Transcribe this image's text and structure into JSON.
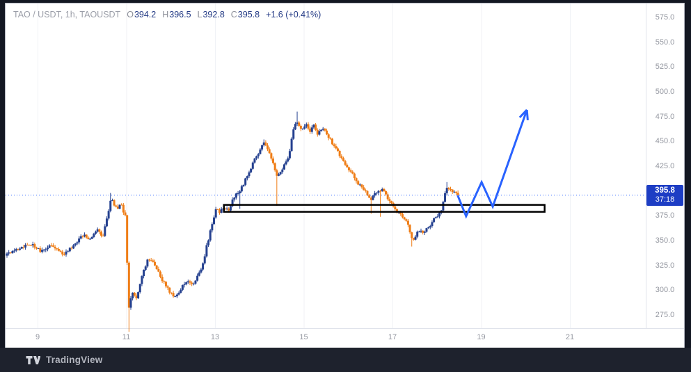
{
  "header": {
    "symbol_text": "TAO / USDT, 1h, TAOUSDT",
    "ohlc": [
      {
        "label": "O",
        "value": "394.2"
      },
      {
        "label": "H",
        "value": "396.5"
      },
      {
        "label": "L",
        "value": "392.8"
      },
      {
        "label": "C",
        "value": "395.8"
      }
    ],
    "change": "+1.6 (+0.41%)"
  },
  "price_axis": {
    "labels": [
      "575.0",
      "550.0",
      "525.0",
      "500.0",
      "475.0",
      "450.0",
      "425.0",
      "400.0",
      "375.0",
      "350.0",
      "325.0",
      "300.0",
      "275.0"
    ],
    "min": 275,
    "max": 575,
    "step": 25
  },
  "time_axis": {
    "labels": [
      "9",
      "11",
      "13",
      "15",
      "17",
      "19",
      "21"
    ],
    "days": [
      9,
      11,
      13,
      15,
      17,
      19,
      21
    ]
  },
  "price_badge": {
    "price": "395.8",
    "countdown": "37:18"
  },
  "footer": {
    "brand": "TradingView"
  },
  "colors": {
    "up": "#24408f",
    "down": "#ef7d16",
    "drawing": "#2962ff",
    "badge_bg": "#1d3dc4",
    "axis_text": "#9598a1",
    "grid": "#f0f2f6",
    "separator": "#e0e3eb",
    "frame_bg": "#131722",
    "footer_bg": "#1e222d",
    "rect_stroke": "#000000"
  },
  "chart_data": {
    "type": "candlestick",
    "symbol": "TAOUSDT",
    "interval": "1h",
    "title": "TAO / USDT, 1h, TAOUSDT",
    "x_unit": "day of month",
    "visible_day_range": [
      8.28,
      22.7
    ],
    "ylim": [
      262,
      585
    ],
    "grid": "vertical-faint",
    "last_price": 395.8,
    "bars_start_day": 8.31,
    "bars_end_day": 18.47,
    "bar_interval_days": 0.0416667,
    "price_keypoints": [
      [
        8.31,
        336
      ],
      [
        8.86,
        347
      ],
      [
        9.09,
        339
      ],
      [
        9.33,
        346
      ],
      [
        9.56,
        336
      ],
      [
        9.8,
        344
      ],
      [
        10.04,
        357
      ],
      [
        10.16,
        352
      ],
      [
        10.35,
        360
      ],
      [
        10.47,
        353
      ],
      [
        10.66,
        393
      ],
      [
        10.79,
        381
      ],
      [
        10.88,
        387
      ],
      [
        11.0,
        371
      ],
      [
        11.04,
        276
      ],
      [
        11.13,
        300
      ],
      [
        11.23,
        291
      ],
      [
        11.37,
        316
      ],
      [
        11.49,
        333
      ],
      [
        11.64,
        325
      ],
      [
        11.79,
        312
      ],
      [
        11.95,
        301
      ],
      [
        12.07,
        292
      ],
      [
        12.18,
        297
      ],
      [
        12.28,
        305
      ],
      [
        12.39,
        309
      ],
      [
        12.5,
        304
      ],
      [
        12.61,
        314
      ],
      [
        12.72,
        326
      ],
      [
        12.81,
        344
      ],
      [
        12.91,
        362
      ],
      [
        13.02,
        381
      ],
      [
        13.11,
        378
      ],
      [
        13.2,
        385
      ],
      [
        13.3,
        379
      ],
      [
        13.39,
        390
      ],
      [
        13.49,
        397
      ],
      [
        13.58,
        402
      ],
      [
        13.67,
        410
      ],
      [
        13.77,
        420
      ],
      [
        13.88,
        430
      ],
      [
        13.99,
        440
      ],
      [
        14.1,
        449
      ],
      [
        14.21,
        441
      ],
      [
        14.3,
        430
      ],
      [
        14.4,
        414
      ],
      [
        14.49,
        421
      ],
      [
        14.58,
        428
      ],
      [
        14.68,
        438
      ],
      [
        14.76,
        462
      ],
      [
        14.85,
        470
      ],
      [
        14.95,
        461
      ],
      [
        15.04,
        468
      ],
      [
        15.13,
        459
      ],
      [
        15.23,
        466
      ],
      [
        15.32,
        457
      ],
      [
        15.42,
        464
      ],
      [
        15.53,
        457
      ],
      [
        15.63,
        449
      ],
      [
        15.75,
        441
      ],
      [
        15.86,
        433
      ],
      [
        15.96,
        426
      ],
      [
        16.07,
        418
      ],
      [
        16.18,
        411
      ],
      [
        16.29,
        404
      ],
      [
        16.4,
        398
      ],
      [
        16.5,
        391
      ],
      [
        16.59,
        396
      ],
      [
        16.69,
        400
      ],
      [
        16.78,
        403
      ],
      [
        16.87,
        395
      ],
      [
        16.97,
        387
      ],
      [
        17.06,
        382
      ],
      [
        17.17,
        378
      ],
      [
        17.27,
        372
      ],
      [
        17.36,
        364
      ],
      [
        17.45,
        350
      ],
      [
        17.53,
        356
      ],
      [
        17.61,
        361
      ],
      [
        17.69,
        357
      ],
      [
        17.77,
        363
      ],
      [
        17.85,
        366
      ],
      [
        17.94,
        372
      ],
      [
        18.02,
        376
      ],
      [
        18.1,
        381
      ],
      [
        18.16,
        393
      ],
      [
        18.22,
        404
      ],
      [
        18.3,
        401
      ],
      [
        18.36,
        397
      ],
      [
        18.43,
        399
      ],
      [
        18.47,
        395.8
      ]
    ],
    "spikes": [
      {
        "day": 10.66,
        "high": 398
      },
      {
        "day": 11.04,
        "low": 258
      },
      {
        "day": 13.58,
        "low": 382
      },
      {
        "day": 14.1,
        "high": 452
      },
      {
        "day": 14.4,
        "low": 385
      },
      {
        "day": 14.85,
        "high": 480
      },
      {
        "day": 16.5,
        "low": 377
      },
      {
        "day": 16.74,
        "low": 374
      },
      {
        "day": 17.45,
        "low": 344
      },
      {
        "day": 18.22,
        "high": 409
      }
    ],
    "drawings": {
      "price_line": {
        "price": 395.8,
        "style": "dotted"
      },
      "rectangle": {
        "day_start": 13.2,
        "day_end": 20.43,
        "price_top": 386,
        "price_bottom": 379
      },
      "arrow": {
        "points": [
          [
            18.47,
            395.6
          ],
          [
            18.66,
            374.5
          ],
          [
            19.01,
            408.9
          ],
          [
            19.26,
            384.3
          ],
          [
            20.03,
            481.8
          ]
        ]
      }
    }
  }
}
